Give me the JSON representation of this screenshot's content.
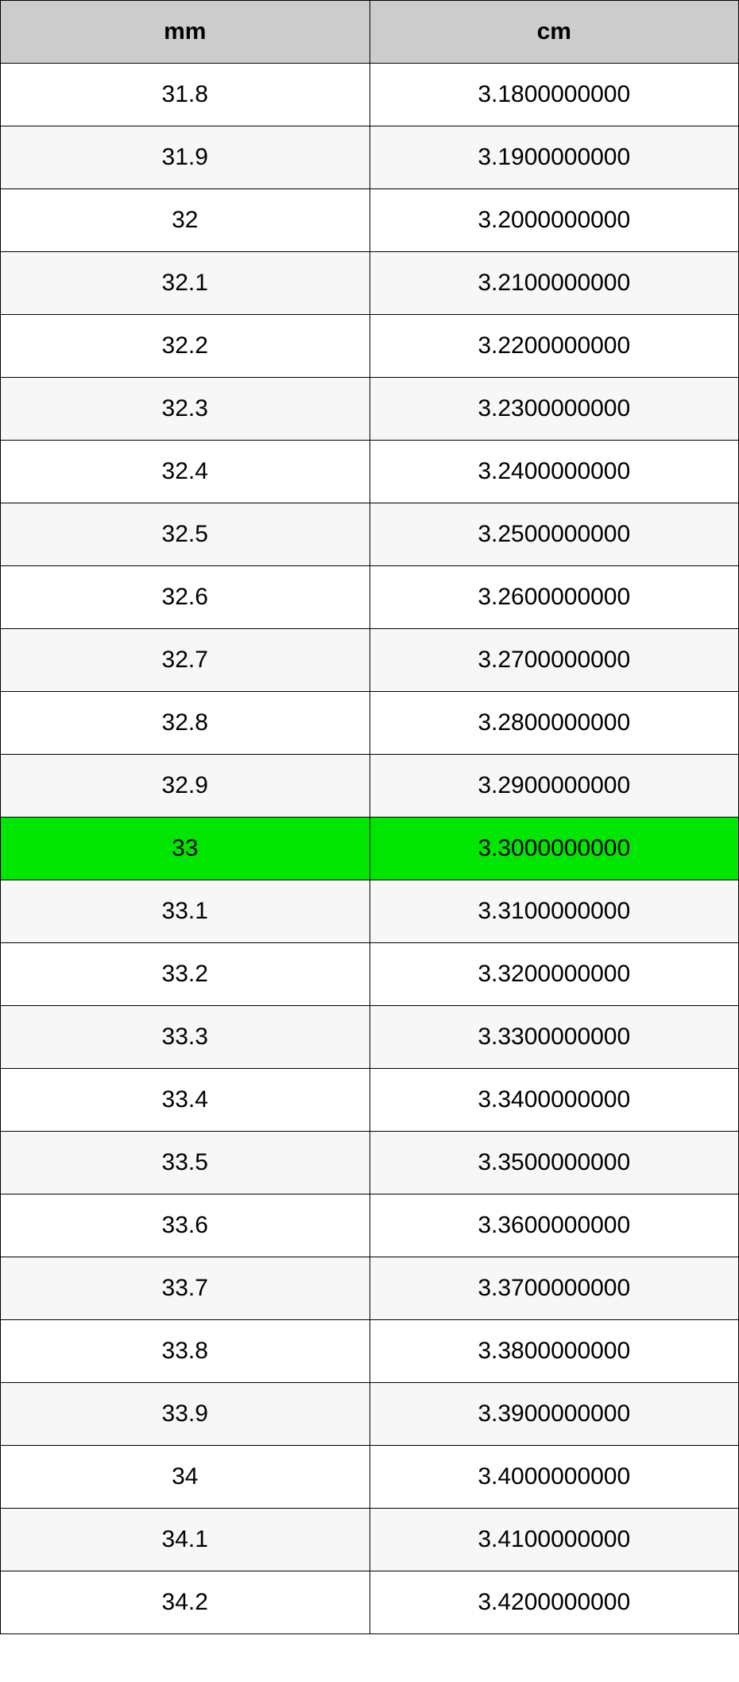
{
  "table": {
    "type": "table",
    "columns": [
      {
        "label": "mm",
        "width_pct": 50,
        "align": "center"
      },
      {
        "label": "cm",
        "width_pct": 50,
        "align": "center"
      }
    ],
    "header_background_color": "#cccccc",
    "header_font_weight": "bold",
    "header_fontsize": 30,
    "cell_fontsize": 30,
    "border_color": "#000000",
    "border_width": 1,
    "row_alt_background_color": "#f7f7f7",
    "row_background_color": "#ffffff",
    "highlight_background_color": "#00e600",
    "highlighted_row_index": 12,
    "text_color": "#000000",
    "rows": [
      {
        "mm": "31.8",
        "cm": "3.1800000000",
        "highlighted": false
      },
      {
        "mm": "31.9",
        "cm": "3.1900000000",
        "highlighted": false
      },
      {
        "mm": "32",
        "cm": "3.2000000000",
        "highlighted": false
      },
      {
        "mm": "32.1",
        "cm": "3.2100000000",
        "highlighted": false
      },
      {
        "mm": "32.2",
        "cm": "3.2200000000",
        "highlighted": false
      },
      {
        "mm": "32.3",
        "cm": "3.2300000000",
        "highlighted": false
      },
      {
        "mm": "32.4",
        "cm": "3.2400000000",
        "highlighted": false
      },
      {
        "mm": "32.5",
        "cm": "3.2500000000",
        "highlighted": false
      },
      {
        "mm": "32.6",
        "cm": "3.2600000000",
        "highlighted": false
      },
      {
        "mm": "32.7",
        "cm": "3.2700000000",
        "highlighted": false
      },
      {
        "mm": "32.8",
        "cm": "3.2800000000",
        "highlighted": false
      },
      {
        "mm": "32.9",
        "cm": "3.2900000000",
        "highlighted": false
      },
      {
        "mm": "33",
        "cm": "3.3000000000",
        "highlighted": true
      },
      {
        "mm": "33.1",
        "cm": "3.3100000000",
        "highlighted": false
      },
      {
        "mm": "33.2",
        "cm": "3.3200000000",
        "highlighted": false
      },
      {
        "mm": "33.3",
        "cm": "3.3300000000",
        "highlighted": false
      },
      {
        "mm": "33.4",
        "cm": "3.3400000000",
        "highlighted": false
      },
      {
        "mm": "33.5",
        "cm": "3.3500000000",
        "highlighted": false
      },
      {
        "mm": "33.6",
        "cm": "3.3600000000",
        "highlighted": false
      },
      {
        "mm": "33.7",
        "cm": "3.3700000000",
        "highlighted": false
      },
      {
        "mm": "33.8",
        "cm": "3.3800000000",
        "highlighted": false
      },
      {
        "mm": "33.9",
        "cm": "3.3900000000",
        "highlighted": false
      },
      {
        "mm": "34",
        "cm": "3.4000000000",
        "highlighted": false
      },
      {
        "mm": "34.1",
        "cm": "3.4100000000",
        "highlighted": false
      },
      {
        "mm": "34.2",
        "cm": "3.4200000000",
        "highlighted": false
      }
    ]
  }
}
